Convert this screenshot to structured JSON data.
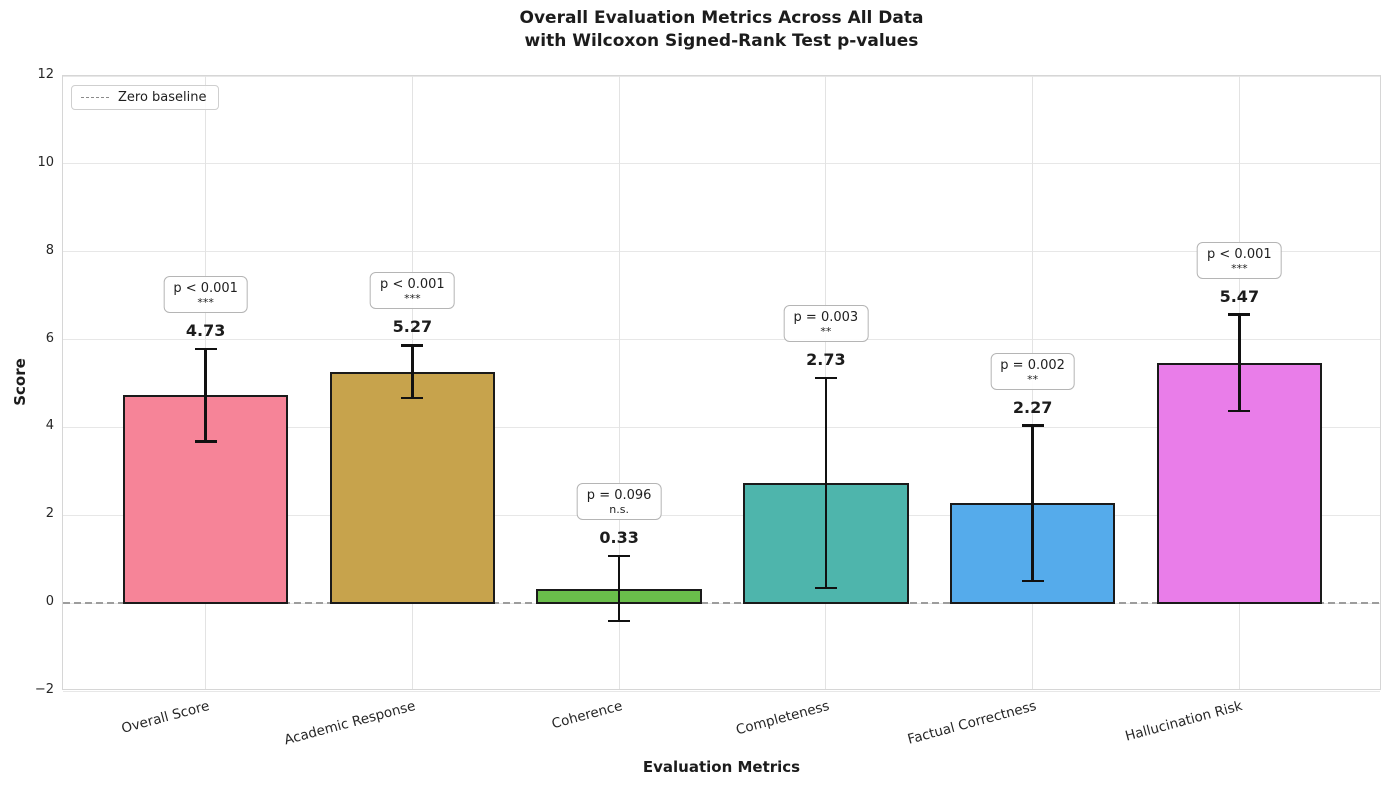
{
  "title": {
    "line1": "Overall Evaluation Metrics Across All Data",
    "line2": "with Wilcoxon Signed-Rank Test p-values"
  },
  "legend": {
    "label": "Zero baseline"
  },
  "chart_data": {
    "type": "bar",
    "title": "Overall Evaluation Metrics Across All Data\nwith Wilcoxon Signed-Rank Test p-values",
    "xlabel": "Evaluation Metrics",
    "ylabel": "Score",
    "ylim": [
      -2,
      12
    ],
    "yticks": [
      -2,
      0,
      2,
      4,
      6,
      8,
      10,
      12
    ],
    "grid": true,
    "legend_position": "upper left",
    "legend_label": "Zero baseline",
    "baseline": {
      "value": 0,
      "style": "dashed",
      "color": "#9d9d9d",
      "label": "Zero baseline"
    },
    "categories": [
      "Overall Score",
      "Academic Response",
      "Coherence",
      "Completeness",
      "Factual Correctness",
      "Hallucination Risk"
    ],
    "values": [
      4.73,
      5.27,
      0.33,
      2.73,
      2.27,
      5.47
    ],
    "value_labels": [
      "4.73",
      "5.27",
      "0.33",
      "2.73",
      "2.27",
      "5.47"
    ],
    "errors": [
      1.05,
      0.6,
      0.74,
      2.39,
      1.77,
      1.1
    ],
    "p_values": [
      "p < 0.001",
      "p < 0.001",
      "p = 0.096",
      "p = 0.003",
      "p = 0.002",
      "p < 0.001"
    ],
    "significance": [
      "***",
      "***",
      "n.s.",
      "**",
      "**",
      "***"
    ],
    "bar_colors": [
      "#f68498",
      "#c7a34c",
      "#6abe4b",
      "#4eb5ac",
      "#55abeb",
      "#e97de9"
    ],
    "bar_edge_color": "#1a1a1a",
    "error_bar_color": "#111111"
  }
}
